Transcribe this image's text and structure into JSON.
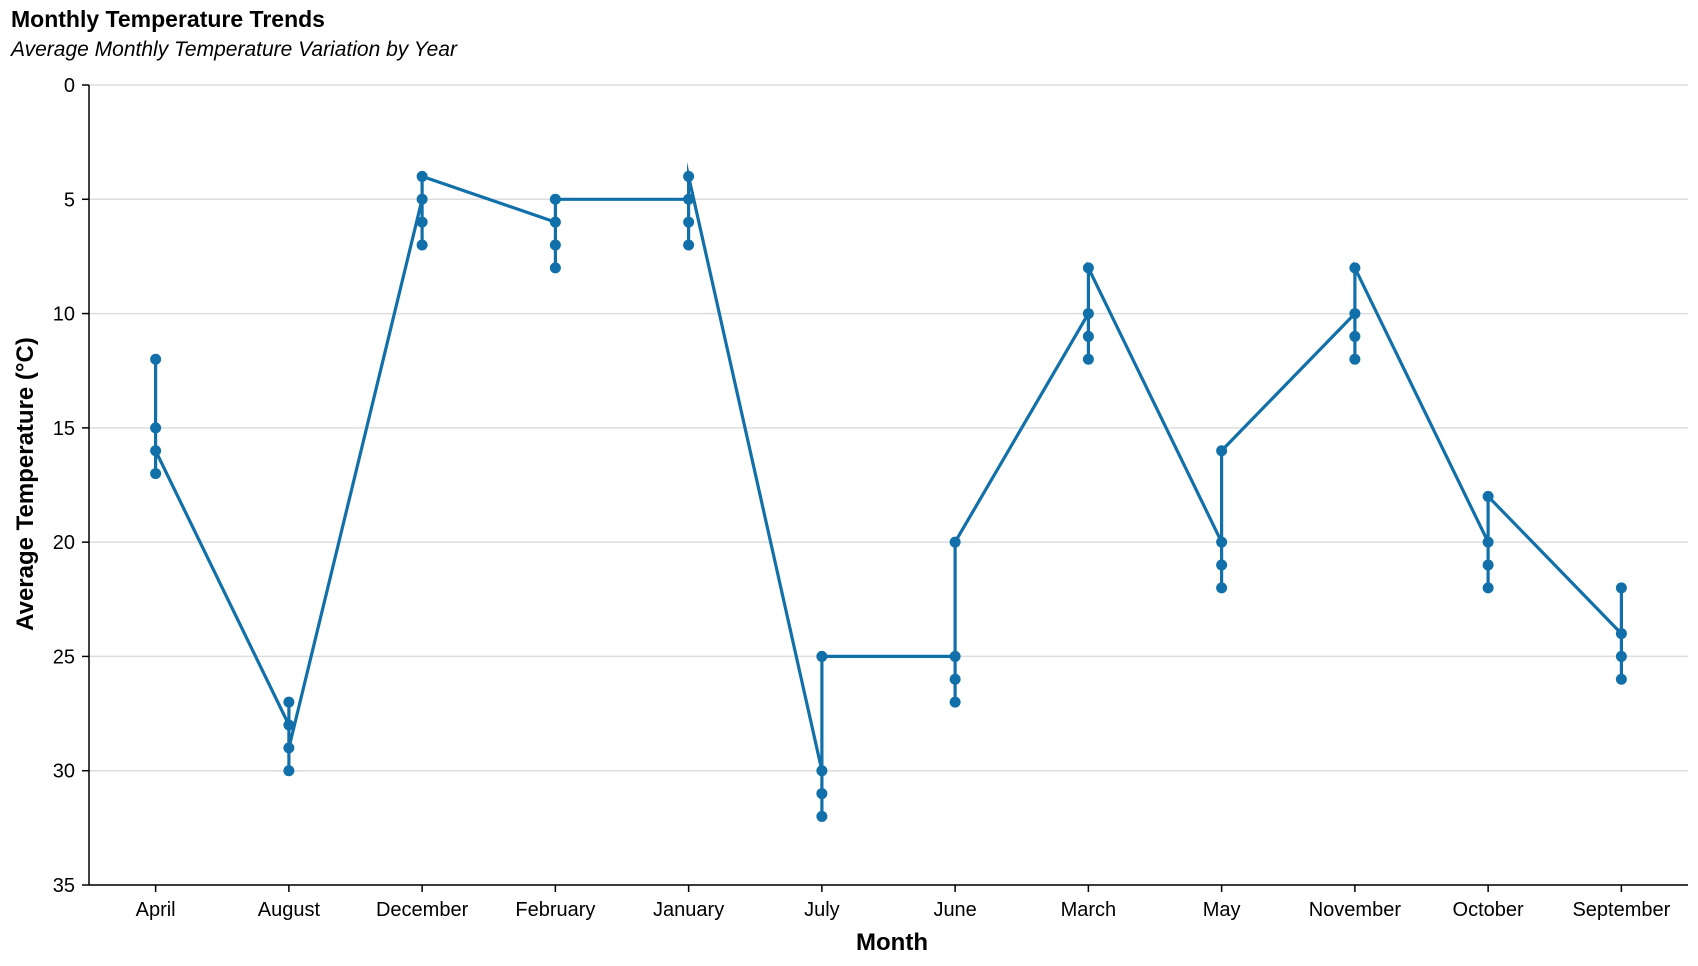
{
  "chart_data": {
    "type": "line",
    "title": "Monthly Temperature Trends",
    "subtitle": "Average Monthly Temperature Variation by Year",
    "xlabel": "Month",
    "ylabel": "Average Temperature (°C)",
    "ylim": [
      0,
      35
    ],
    "y_reversed": true,
    "y_ticks": [
      0,
      5,
      10,
      15,
      20,
      25,
      30,
      35
    ],
    "grid": "horizontal",
    "color": "#1170aa",
    "categories": [
      "April",
      "August",
      "December",
      "February",
      "January",
      "July",
      "June",
      "March",
      "May",
      "November",
      "October",
      "September"
    ],
    "points": [
      {
        "month": "April",
        "values": [
          12,
          15,
          16,
          17
        ]
      },
      {
        "month": "August",
        "values": [
          27,
          28,
          29,
          30
        ]
      },
      {
        "month": "December",
        "values": [
          4,
          5,
          6,
          7
        ]
      },
      {
        "month": "February",
        "values": [
          5,
          6,
          7,
          8
        ]
      },
      {
        "month": "January",
        "values": [
          4,
          5,
          6,
          7
        ]
      },
      {
        "month": "July",
        "values": [
          25,
          30,
          31,
          32
        ]
      },
      {
        "month": "June",
        "values": [
          20,
          25,
          26,
          27
        ]
      },
      {
        "month": "March",
        "values": [
          8,
          10,
          11,
          12
        ]
      },
      {
        "month": "May",
        "values": [
          16,
          20,
          21,
          22
        ]
      },
      {
        "month": "November",
        "values": [
          8,
          10,
          11,
          12
        ]
      },
      {
        "month": "October",
        "values": [
          18,
          20,
          21,
          22
        ]
      },
      {
        "month": "September",
        "values": [
          22,
          24,
          25,
          26
        ]
      }
    ],
    "line_path": [
      [
        "April",
        12
      ],
      [
        "April",
        17
      ],
      [
        "April",
        15
      ],
      [
        "April",
        16
      ],
      [
        "August",
        28
      ],
      [
        "August",
        30
      ],
      [
        "August",
        27
      ],
      [
        "August",
        29
      ],
      [
        "December",
        5
      ],
      [
        "December",
        7
      ],
      [
        "December",
        4
      ],
      [
        "February",
        6
      ],
      [
        "February",
        8
      ],
      [
        "February",
        5
      ],
      [
        "January",
        5
      ],
      [
        "January",
        7
      ],
      [
        "January",
        4
      ],
      [
        "July",
        30
      ],
      [
        "July",
        32
      ],
      [
        "July",
        25
      ],
      [
        "June",
        25
      ],
      [
        "June",
        27
      ],
      [
        "June",
        20
      ],
      [
        "March",
        10
      ],
      [
        "March",
        12
      ],
      [
        "March",
        8
      ],
      [
        "May",
        20
      ],
      [
        "May",
        22
      ],
      [
        "May",
        16
      ],
      [
        "November",
        10
      ],
      [
        "November",
        12
      ],
      [
        "November",
        8
      ],
      [
        "October",
        20
      ],
      [
        "October",
        22
      ],
      [
        "October",
        18
      ],
      [
        "September",
        24
      ],
      [
        "September",
        26
      ],
      [
        "September",
        22
      ]
    ]
  }
}
